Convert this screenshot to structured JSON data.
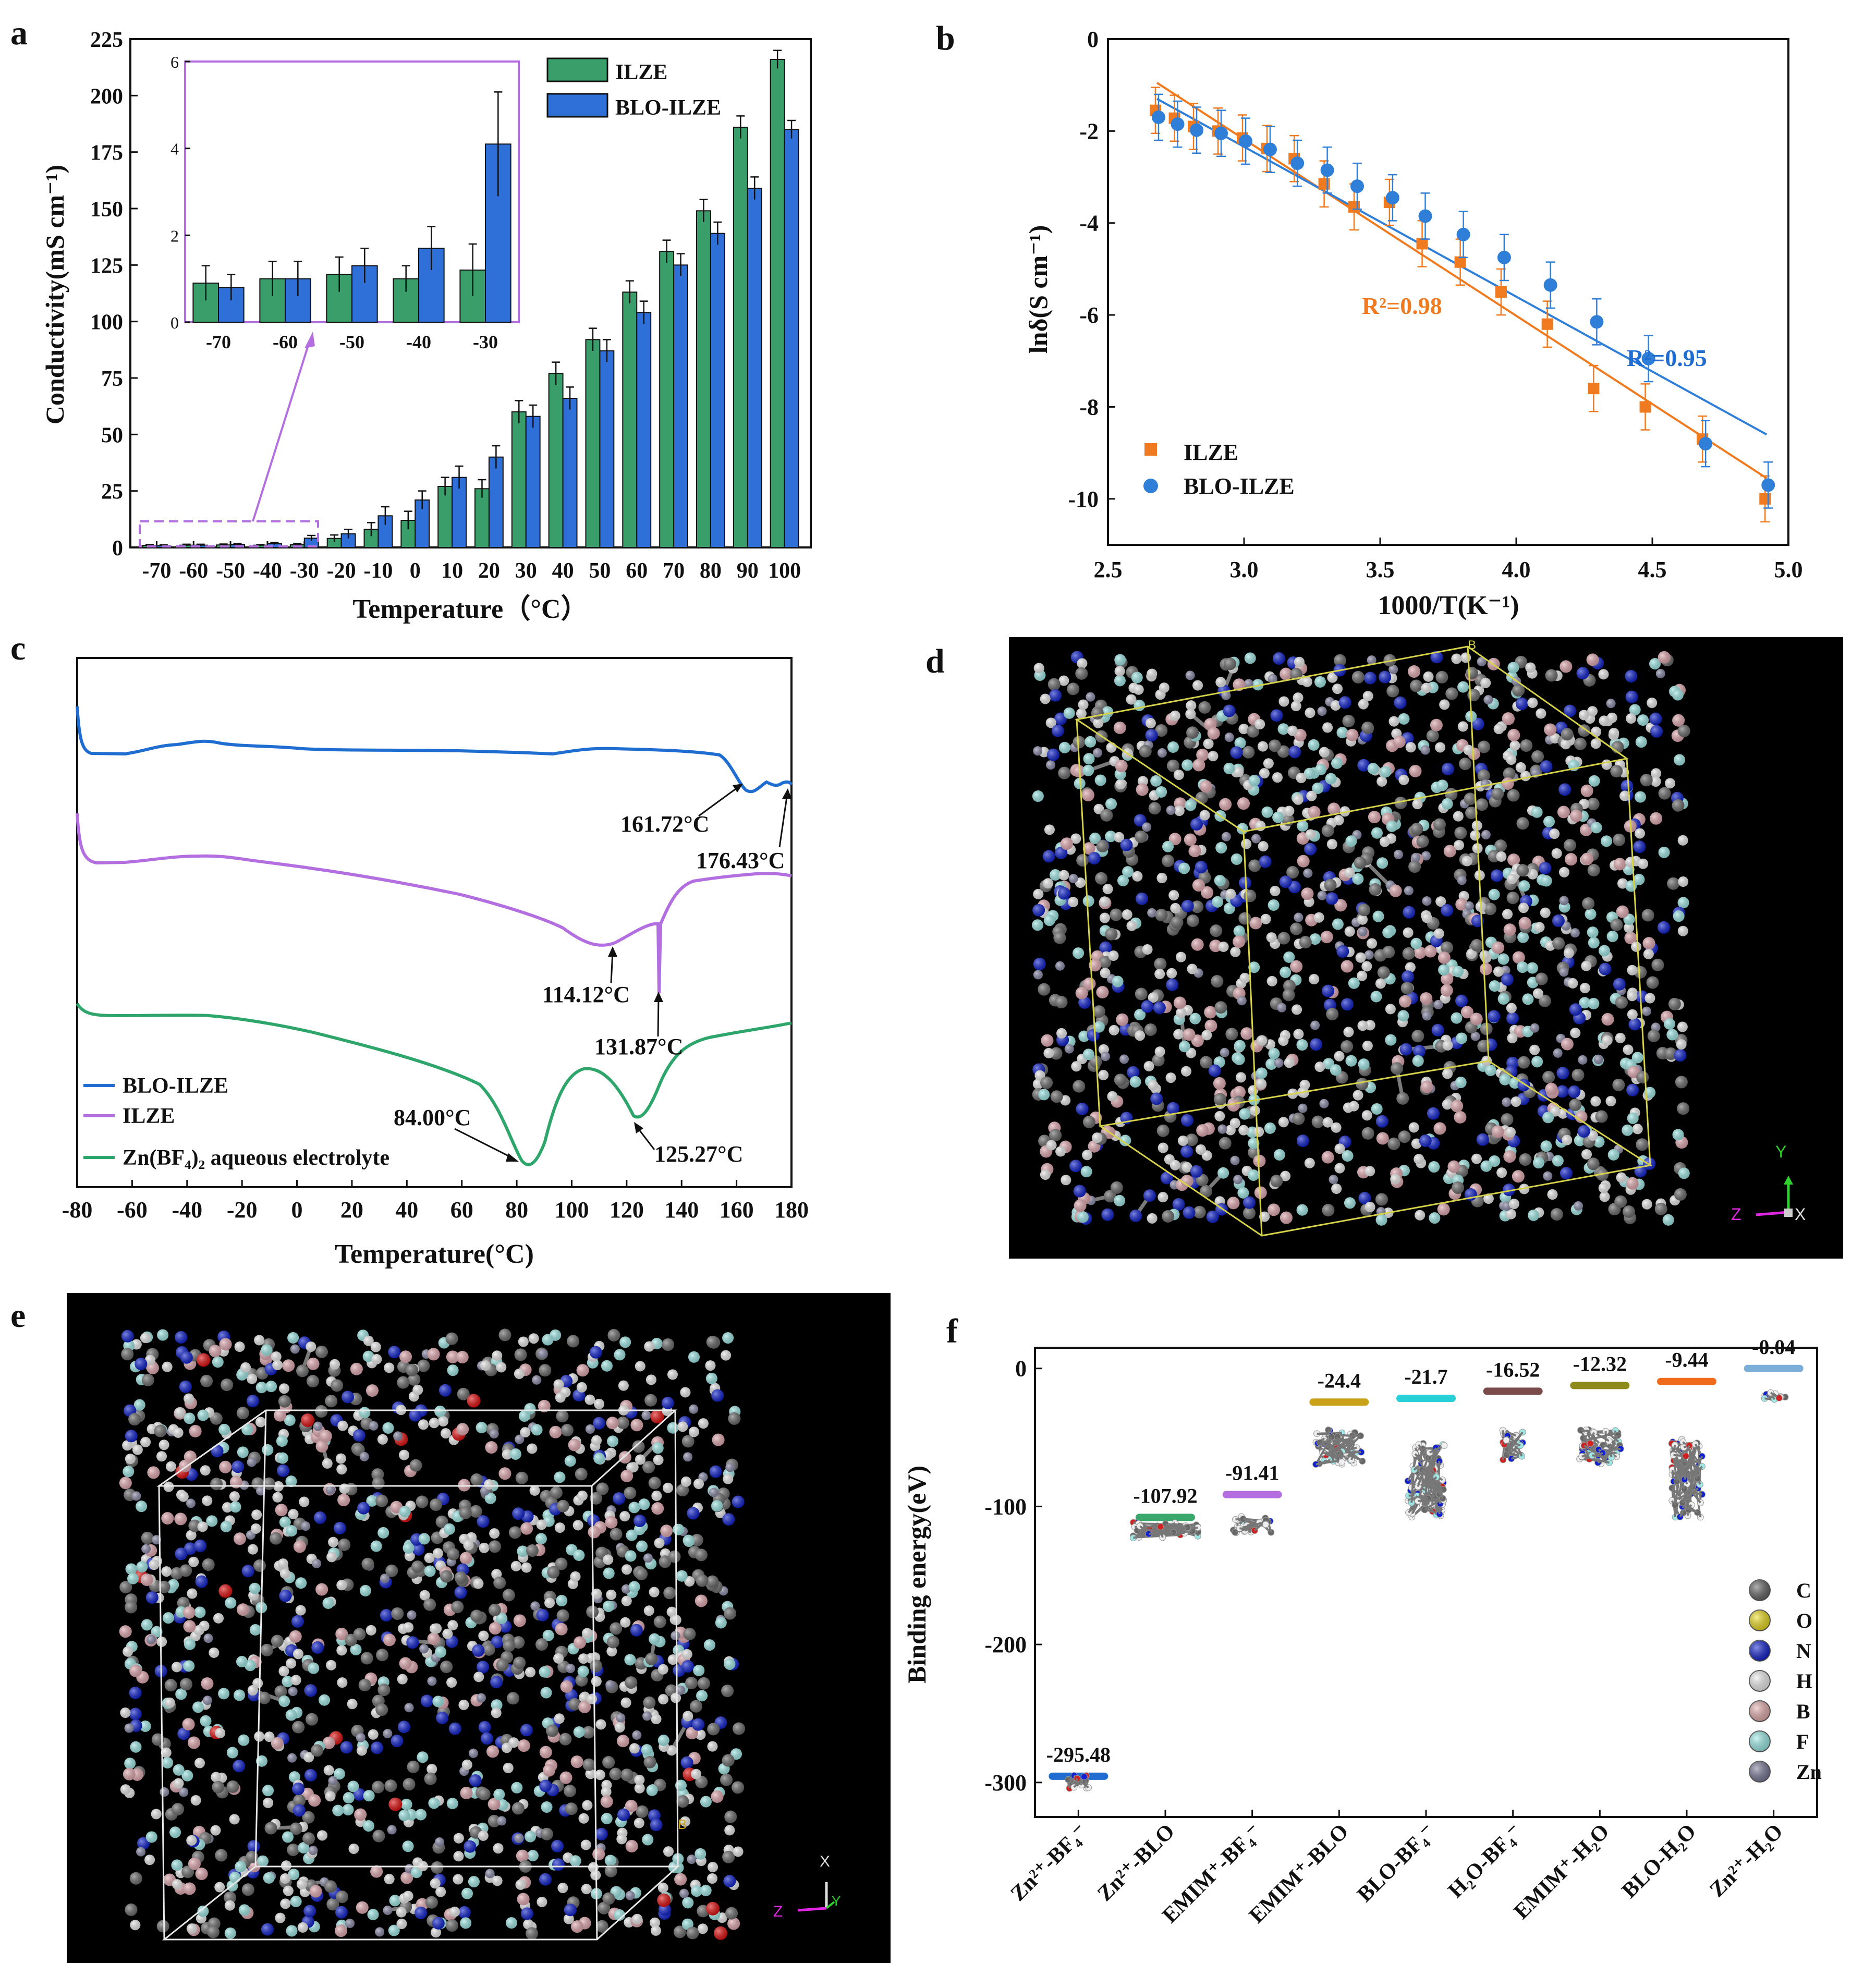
{
  "colors": {
    "green": "#3a9e6a",
    "blue": "#2f6fd8",
    "orange": "#ef7a1f",
    "blue_dot": "#2f7fd8",
    "purple": "#b36fe0",
    "lineblue": "#1f6dd0",
    "linepurple": "#b36fe0",
    "linegreen": "#2ea66b"
  },
  "chart_data": [
    {
      "panel": "a",
      "type": "bar",
      "title": "",
      "xlabel": "Temperature（°C）",
      "ylabel": "Conductivity(mS cm⁻¹)",
      "ylim": [
        0,
        225
      ],
      "yticks": [
        "0",
        "25",
        "50",
        "75",
        "100",
        "125",
        "150",
        "175",
        "200",
        "225"
      ],
      "categories": [
        "-70",
        "-60",
        "-50",
        "-40",
        "-30",
        "-20",
        "-10",
        "0",
        "10",
        "20",
        "30",
        "40",
        "50",
        "60",
        "70",
        "80",
        "90",
        "100"
      ],
      "series": [
        {
          "name": "ILZE",
          "values": [
            0.9,
            1.0,
            1.1,
            1.0,
            1.2,
            4,
            8,
            12,
            27,
            26,
            60,
            77,
            92,
            113,
            131,
            149,
            186,
            216
          ],
          "errors": [
            0.4,
            0.4,
            0.4,
            0.3,
            0.6,
            1.5,
            3,
            4,
            4,
            4,
            5,
            5,
            5,
            5,
            5,
            5,
            5,
            4
          ]
        },
        {
          "name": "BLO-ILZE",
          "values": [
            0.8,
            1.0,
            1.3,
            1.7,
            4.1,
            6,
            14,
            21,
            31,
            40,
            58,
            66,
            87,
            104,
            125,
            139,
            159,
            185
          ],
          "errors": [
            0.3,
            0.4,
            0.4,
            0.5,
            1.2,
            2,
            4,
            4,
            5,
            5,
            5,
            5,
            5,
            5,
            5,
            5,
            5,
            4
          ]
        }
      ],
      "legend": "top-center",
      "inset": {
        "categories": [
          "-70",
          "-60",
          "-50",
          "-40",
          "-30"
        ],
        "ylim": [
          0,
          6
        ],
        "yticks": [
          "0",
          "2",
          "4",
          "6"
        ]
      }
    },
    {
      "panel": "b",
      "type": "scatter",
      "xlabel": "1000/T(K⁻¹)",
      "ylabel": "lnδ(S cm⁻¹)",
      "xlim": [
        2.5,
        5.0
      ],
      "ylim": [
        -11,
        0
      ],
      "xticks": [
        "2.5",
        "3.0",
        "3.5",
        "4.0",
        "4.5",
        "5.0"
      ],
      "yticks": [
        "0",
        "-2",
        "-4",
        "-6",
        "-8",
        "-10"
      ],
      "series": [
        {
          "name": "ILZE",
          "x": [
            2.68,
            2.75,
            2.82,
            2.91,
            3.0,
            3.09,
            3.19,
            3.3,
            3.41,
            3.54,
            3.66,
            3.8,
            3.95,
            4.12,
            4.29,
            4.48,
            4.69,
            4.92
          ],
          "y": [
            -1.55,
            -1.72,
            -1.9,
            -2.0,
            -2.15,
            -2.38,
            -2.6,
            -3.15,
            -3.65,
            -3.55,
            -4.45,
            -4.85,
            -5.5,
            -6.2,
            -7.6,
            -8.0,
            -8.7,
            -10.0
          ],
          "errors": [
            0.5,
            0.5,
            0.5,
            0.5,
            0.5,
            0.5,
            0.5,
            0.5,
            0.5,
            0.5,
            0.5,
            0.5,
            0.5,
            0.5,
            0.5,
            0.5,
            0.5,
            0.5
          ],
          "fit": [
            [
              2.68,
              -0.95
            ],
            [
              4.92,
              -9.55
            ]
          ]
        },
        {
          "name": "BLO-ILZE",
          "x": [
            2.68,
            2.75,
            2.82,
            2.91,
            3.0,
            3.09,
            3.19,
            3.3,
            3.41,
            3.54,
            3.66,
            3.8,
            3.95,
            4.12,
            4.29,
            4.48,
            4.69,
            4.92
          ],
          "y": [
            -1.7,
            -1.85,
            -1.98,
            -2.05,
            -2.22,
            -2.4,
            -2.7,
            -2.85,
            -3.2,
            -3.45,
            -3.85,
            -4.25,
            -4.75,
            -5.35,
            -6.15,
            -6.95,
            -8.8,
            -9.7
          ],
          "errors": [
            0.5,
            0.5,
            0.5,
            0.5,
            0.5,
            0.5,
            0.5,
            0.5,
            0.5,
            0.5,
            0.5,
            0.5,
            0.5,
            0.5,
            0.5,
            0.5,
            0.5,
            0.5
          ],
          "fit": [
            [
              2.68,
              -1.3
            ],
            [
              4.92,
              -8.6
            ]
          ]
        }
      ],
      "annotations": [
        "R²=0.98",
        "R²=0.95"
      ],
      "legend": "bottom-left"
    },
    {
      "panel": "c",
      "type": "line",
      "xlabel": "Temperature(°C)",
      "xlim": [
        -80,
        180
      ],
      "xticks": [
        "-80",
        "-60",
        "-40",
        "-20",
        "0",
        "20",
        "40",
        "60",
        "80",
        "100",
        "120",
        "140",
        "160",
        "180"
      ],
      "series": [
        {
          "name": "BLO-ILZE"
        },
        {
          "name": "ILZE"
        },
        {
          "name": "Zn(BF₄)₂ aqueous electrolyte"
        }
      ],
      "annotations": [
        "161.72°C",
        "176.43°C",
        "114.12°C",
        "131.87°C",
        "84.00°C",
        "125.27°C"
      ],
      "legend": "bottom-left"
    },
    {
      "panel": "f",
      "type": "bar",
      "ylabel": "Binding energy(eV)",
      "ylim": [
        -325,
        15
      ],
      "yticks": [
        "0",
        "-100",
        "-200",
        "-300"
      ],
      "categories": [
        "Zn²⁺-BF₄⁻",
        "Zn²⁺-BLO",
        "EMIM⁺-BF₄⁻",
        "EMIM⁺-BLO",
        "BLO-BF₄⁻",
        "H₂O-BF₄⁻",
        "EMIM⁺-H₂O",
        "BLO-H₂O",
        "Zn²⁺-H₂O"
      ],
      "values": [
        -295.48,
        -107.92,
        -91.41,
        -24.4,
        -21.7,
        -16.52,
        -12.32,
        -9.44,
        -0.04
      ],
      "value_labels": [
        "-295.48",
        "-107.92",
        "-91.41",
        "-24.4",
        "-21.7",
        "-16.52",
        "-12.32",
        "-9.44",
        "-0.04"
      ],
      "level_colors": [
        "#1f6dd0",
        "#3aa86a",
        "#b36fe0",
        "#c9a21a",
        "#27cfd6",
        "#7b4a4a",
        "#8e8a1c",
        "#ef6a1a",
        "#7aaed8"
      ],
      "legend_elements": [
        "C",
        "O",
        "N",
        "H",
        "B",
        "F",
        "Zn"
      ],
      "legend_colors": [
        "#666666",
        "#f0e020",
        "#1020d0",
        "#f2f2f2",
        "#e8b0b0",
        "#9ff0ec",
        "#7a7a9a"
      ]
    }
  ],
  "panels": {
    "a": "a",
    "b": "b",
    "c": "c",
    "d": "d",
    "e": "e",
    "f": "f"
  },
  "molecular": {
    "d_axes": [
      "Y",
      "Z",
      "X"
    ],
    "d_box_label": "B",
    "e_axes": [
      "X",
      "Z",
      "Y"
    ],
    "e_box_label": "B"
  }
}
